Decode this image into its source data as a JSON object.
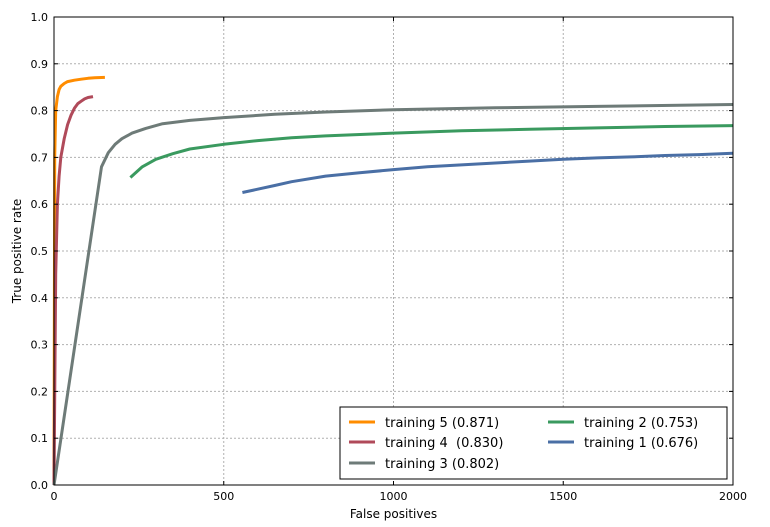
{
  "chart_data": {
    "type": "line",
    "title": "",
    "xlabel": "False positives",
    "ylabel": "True positive rate",
    "xlim": [
      0,
      2000
    ],
    "ylim": [
      0,
      1.0
    ],
    "xticks": [
      0,
      500,
      1000,
      1500,
      2000
    ],
    "yticks": [
      0.0,
      0.1,
      0.2,
      0.3,
      0.4,
      0.5,
      0.6,
      0.7,
      0.8,
      0.9,
      1.0
    ],
    "xtick_labels": [
      "0",
      "500",
      "1000",
      "1500",
      "2000"
    ],
    "ytick_labels": [
      "0.0",
      "0.1",
      "0.2",
      "0.3",
      "0.4",
      "0.5",
      "0.6",
      "0.7",
      "0.8",
      "0.9",
      "1.0"
    ],
    "grid": true,
    "legend_position": "bottom-right",
    "legend_columns": 2,
    "series": [
      {
        "name": "training 5 (0.871)",
        "color": "#ff8c00",
        "x": [
          0,
          2,
          5,
          10,
          15,
          20,
          30,
          40,
          60,
          80,
          100,
          120,
          150
        ],
        "y": [
          0.0,
          0.7,
          0.8,
          0.83,
          0.845,
          0.852,
          0.858,
          0.862,
          0.865,
          0.867,
          0.869,
          0.87,
          0.871
        ]
      },
      {
        "name": "training 4  (0.830)",
        "color": "#b04a5a",
        "x": [
          0,
          5,
          10,
          15,
          20,
          30,
          40,
          50,
          60,
          70,
          80,
          90,
          100,
          115
        ],
        "y": [
          0.0,
          0.45,
          0.6,
          0.66,
          0.7,
          0.74,
          0.77,
          0.79,
          0.805,
          0.815,
          0.82,
          0.825,
          0.828,
          0.83
        ]
      },
      {
        "name": "training 3 (0.802)",
        "color": "#6e7b78",
        "x": [
          0,
          140,
          160,
          180,
          200,
          230,
          270,
          320,
          400,
          500,
          650,
          800,
          1000,
          1300,
          1600,
          2000
        ],
        "y": [
          0.0,
          0.68,
          0.71,
          0.728,
          0.74,
          0.752,
          0.762,
          0.772,
          0.779,
          0.785,
          0.792,
          0.797,
          0.802,
          0.806,
          0.809,
          0.813
        ]
      },
      {
        "name": "training 2 (0.753)",
        "color": "#3a9a5f",
        "x": [
          225,
          260,
          300,
          350,
          400,
          500,
          600,
          700,
          800,
          1000,
          1200,
          1400,
          1600,
          1800,
          2000
        ],
        "y": [
          0.657,
          0.68,
          0.696,
          0.708,
          0.718,
          0.728,
          0.736,
          0.742,
          0.746,
          0.752,
          0.757,
          0.76,
          0.763,
          0.766,
          0.768
        ]
      },
      {
        "name": "training 1 (0.676)",
        "color": "#4a6fa5",
        "x": [
          555,
          600,
          650,
          700,
          800,
          900,
          1000,
          1100,
          1200,
          1300,
          1400,
          1500,
          1600,
          1700,
          1800,
          1900,
          2000
        ],
        "y": [
          0.625,
          0.632,
          0.64,
          0.648,
          0.66,
          0.667,
          0.674,
          0.68,
          0.684,
          0.688,
          0.692,
          0.696,
          0.699,
          0.701,
          0.704,
          0.706,
          0.709
        ]
      }
    ],
    "legend_order": [
      0,
      3,
      1,
      4,
      2
    ]
  }
}
